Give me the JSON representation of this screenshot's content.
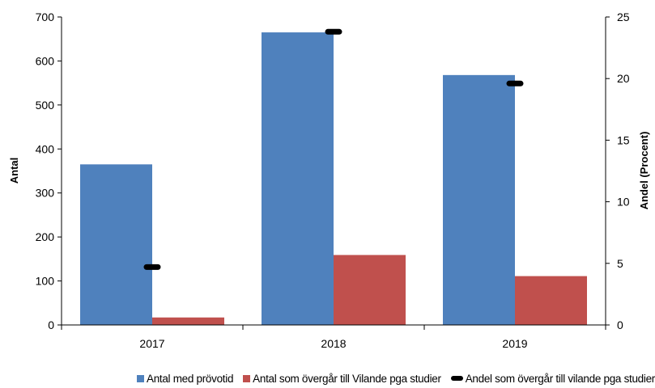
{
  "chart_data": {
    "type": "bar",
    "categories": [
      "2017",
      "2018",
      "2019"
    ],
    "series": [
      {
        "name": "Antal med prövotid",
        "axis": "left",
        "kind": "bar",
        "color": "#4F81BD",
        "values": [
          365,
          665,
          568
        ]
      },
      {
        "name": "Antal som övergår till Vilande pga studier",
        "axis": "left",
        "kind": "bar",
        "color": "#C0504D",
        "values": [
          17,
          159,
          111
        ]
      },
      {
        "name": "Andel som övergår till vilande pga studier",
        "axis": "right",
        "kind": "marker",
        "color": "#000000",
        "values": [
          4.7,
          23.8,
          19.6
        ]
      }
    ],
    "ylabel": "Antal",
    "ylim": [
      0,
      700
    ],
    "yticks": [
      "0",
      "100",
      "200",
      "300",
      "400",
      "500",
      "600",
      "700"
    ],
    "y2label": "Andel (Procent)",
    "y2lim": [
      0,
      25
    ],
    "y2ticks": [
      "0",
      "5",
      "10",
      "15",
      "20",
      "25"
    ],
    "grid": false,
    "legend_position": "bottom"
  }
}
